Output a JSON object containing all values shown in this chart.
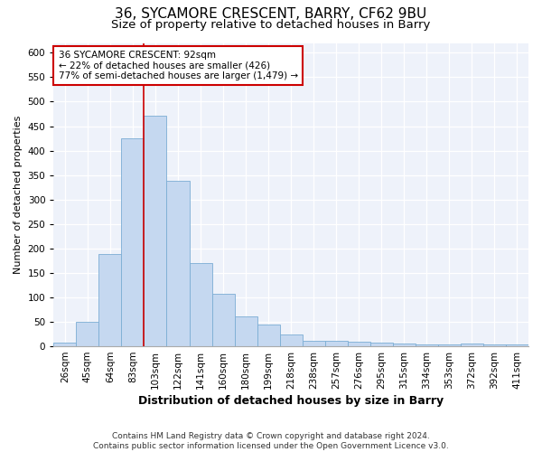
{
  "title1": "36, SYCAMORE CRESCENT, BARRY, CF62 9BU",
  "title2": "Size of property relative to detached houses in Barry",
  "xlabel": "Distribution of detached houses by size in Barry",
  "ylabel": "Number of detached properties",
  "categories": [
    "26sqm",
    "45sqm",
    "64sqm",
    "83sqm",
    "103sqm",
    "122sqm",
    "141sqm",
    "160sqm",
    "180sqm",
    "199sqm",
    "218sqm",
    "238sqm",
    "257sqm",
    "276sqm",
    "295sqm",
    "315sqm",
    "334sqm",
    "353sqm",
    "372sqm",
    "392sqm",
    "411sqm"
  ],
  "values": [
    7,
    50,
    188,
    425,
    472,
    338,
    170,
    107,
    62,
    45,
    25,
    12,
    12,
    9,
    7,
    5,
    4,
    4,
    5,
    4,
    4
  ],
  "bar_color": "#c5d8f0",
  "bar_edge_color": "#7badd4",
  "vline_color": "#cc0000",
  "annotation_text": "36 SYCAMORE CRESCENT: 92sqm\n← 22% of detached houses are smaller (426)\n77% of semi-detached houses are larger (1,479) →",
  "annotation_box_color": "#ffffff",
  "annotation_box_edge": "#cc0000",
  "ylim": [
    0,
    620
  ],
  "yticks": [
    0,
    50,
    100,
    150,
    200,
    250,
    300,
    350,
    400,
    450,
    500,
    550,
    600
  ],
  "footer_text": "Contains HM Land Registry data © Crown copyright and database right 2024.\nContains public sector information licensed under the Open Government Licence v3.0.",
  "bg_color": "#eef2fa",
  "title1_fontsize": 11,
  "title2_fontsize": 9.5,
  "xlabel_fontsize": 9,
  "ylabel_fontsize": 8,
  "tick_fontsize": 7.5,
  "footer_fontsize": 6.5,
  "vline_x": 3.5
}
